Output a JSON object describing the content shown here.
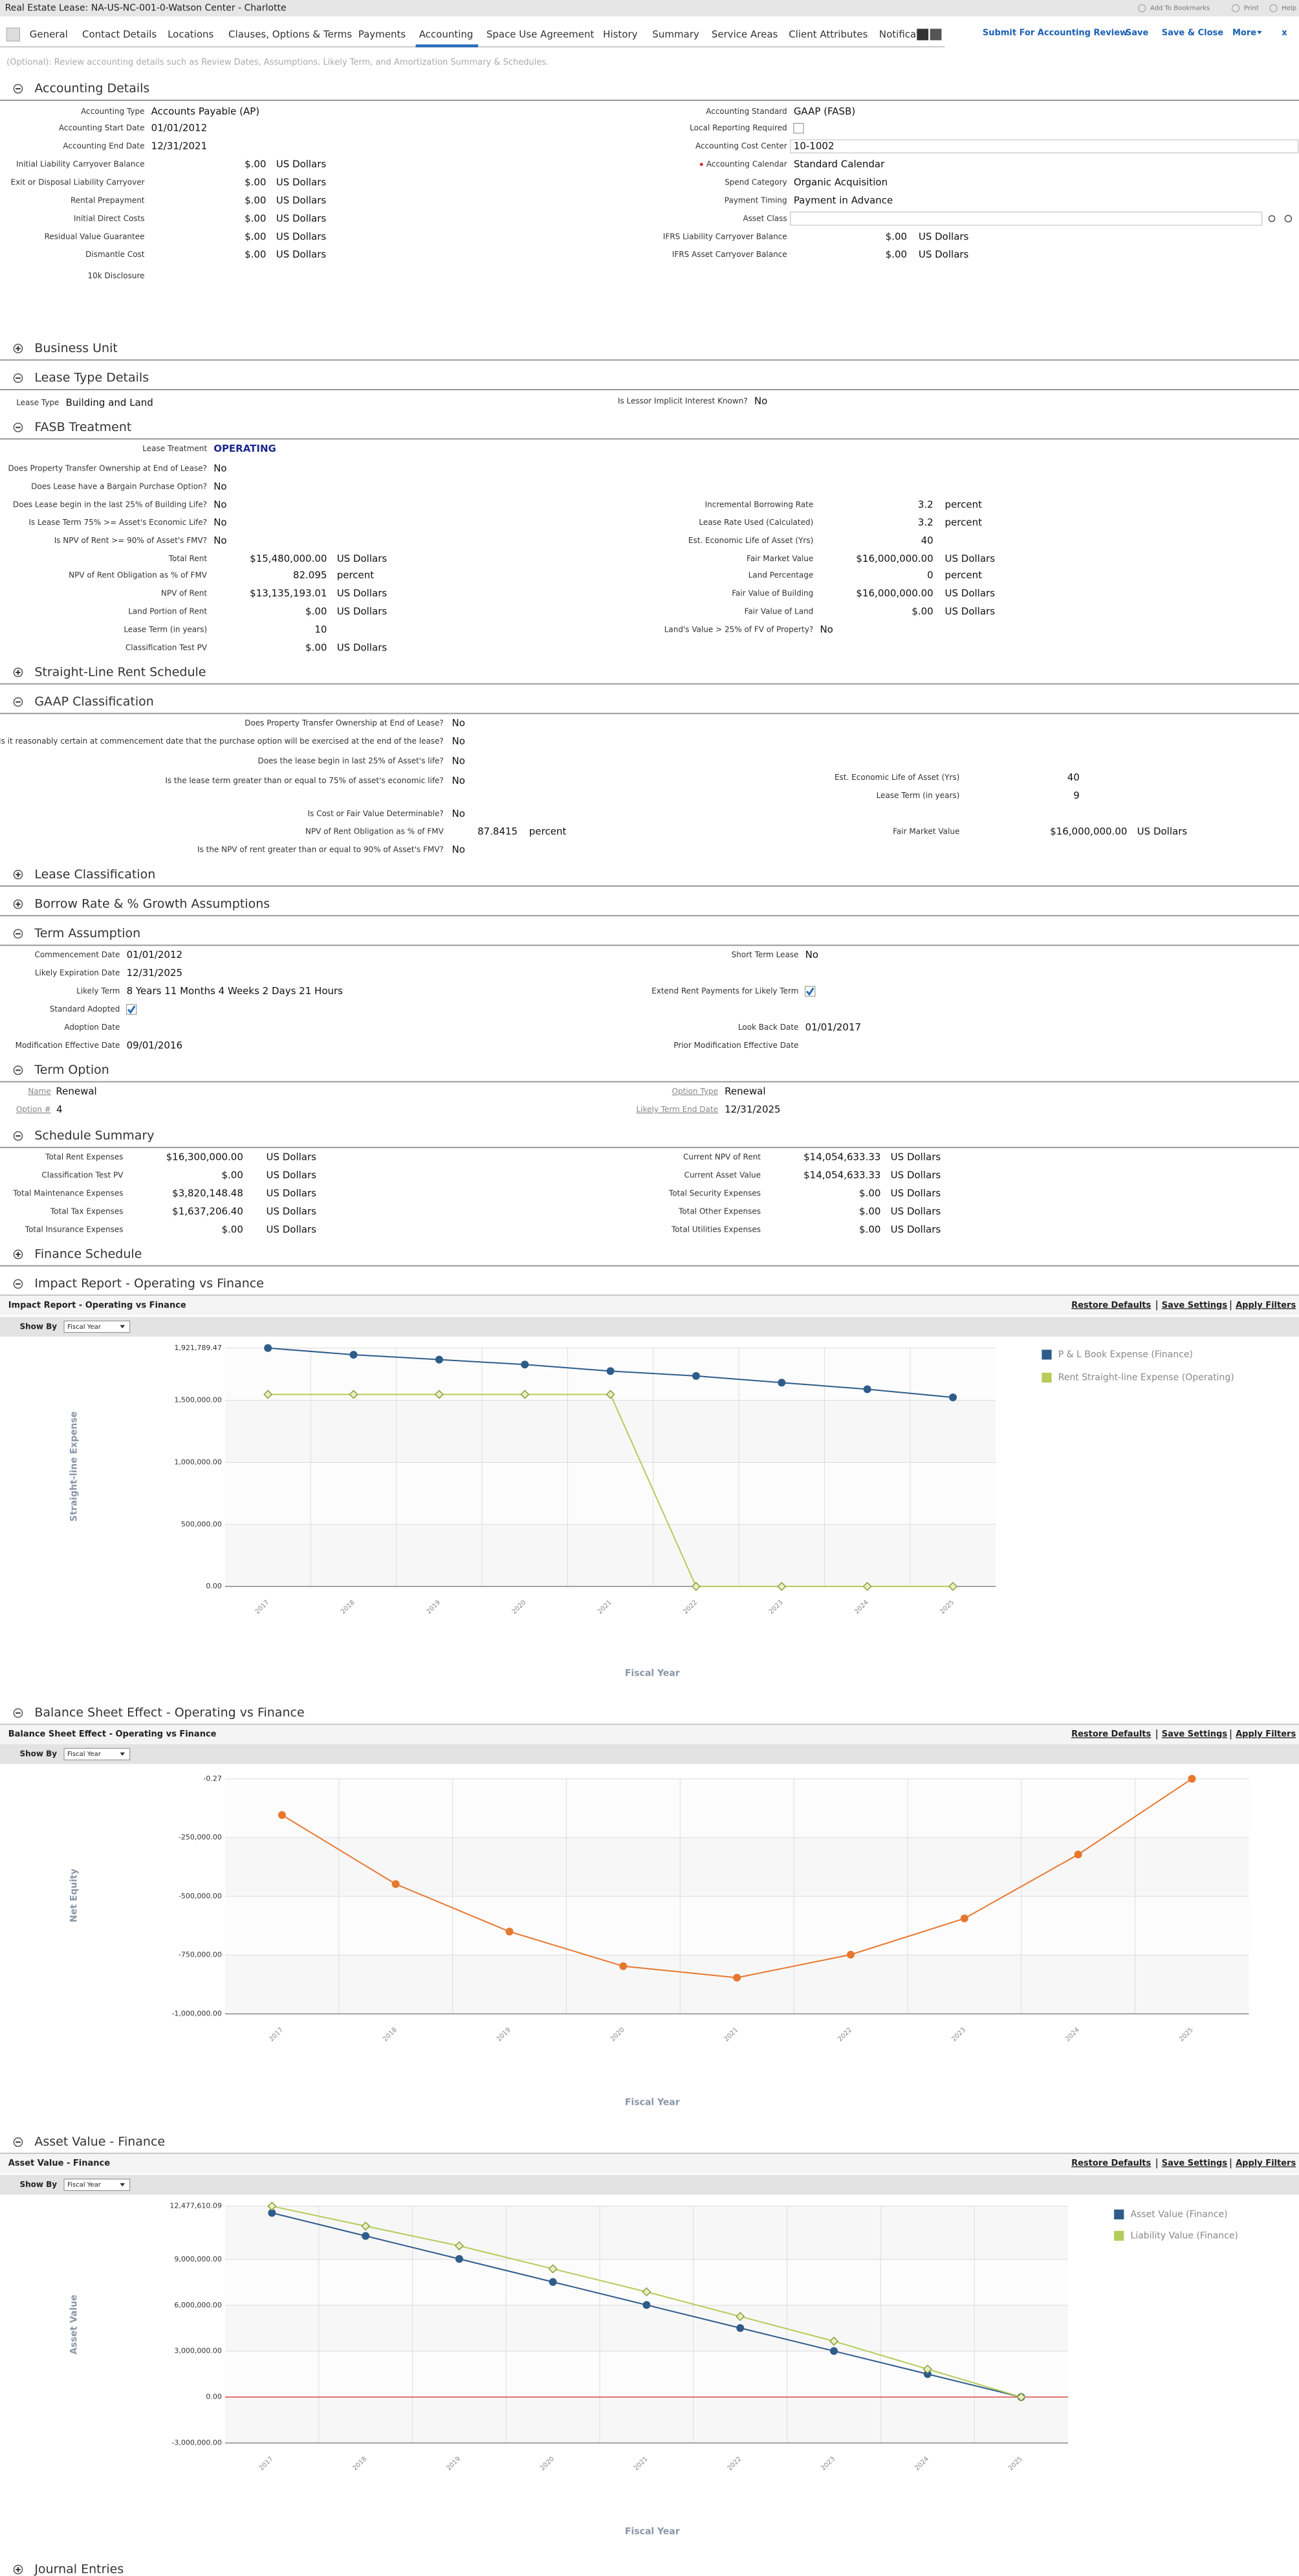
{
  "header": {
    "title": "Real Estate Lease: NA-US-NC-001-0-Watson Center - Charlotte",
    "links": [
      "Add To Bookmarks",
      "Print",
      "Help"
    ]
  },
  "tabs": [
    "General",
    "Contact Details",
    "Locations",
    "Clauses, Options & Terms",
    "Payments",
    "Accounting",
    "Space Use Agreement",
    "History",
    "Summary",
    "Service Areas",
    "Client Attributes",
    "Notificati"
  ],
  "active_tab": 5,
  "actions": [
    "Submit For Accounting Review",
    "Save",
    "Save & Close",
    "More",
    "x"
  ],
  "instructions": "(Optional): Review accounting details such as Review Dates, Assumptions, Likely Term, and Amortization Summary & Schedules.",
  "sections": [
    {
      "title": "Accounting Details",
      "expanded": true,
      "left": [
        {
          "label": "Accounting Type",
          "value": "Accounts Payable (AP)"
        },
        {
          "label": "Accounting Start Date",
          "value": "01/01/2012"
        },
        {
          "label": "Accounting End Date",
          "value": "12/31/2021"
        },
        {
          "label": "Initial Liability Carryover Balance",
          "value": "$.00",
          "unit": "US Dollars"
        },
        {
          "label": "Exit or Disposal Liability Carryover",
          "value": "$.00",
          "unit": "US Dollars"
        },
        {
          "label": "Rental Prepayment",
          "value": "$.00",
          "unit": "US Dollars"
        },
        {
          "label": "Initial Direct Costs",
          "value": "$.00",
          "unit": "US Dollars"
        },
        {
          "label": "Residual Value Guarantee",
          "value": "$.00",
          "unit": "US Dollars"
        },
        {
          "label": "Dismantle Cost",
          "value": "$.00",
          "unit": "US Dollars"
        },
        {
          "label": "10k Disclosure"
        }
      ],
      "right": [
        {
          "label": "Accounting Standard",
          "value": "GAAP (FASB)"
        },
        {
          "label": "Local Reporting Required",
          "value": false
        },
        {
          "label": "Accounting Cost Center",
          "value": "10-1002",
          "input": true
        },
        {
          "label": "Accounting Calendar",
          "value": "Standard Calendar",
          "required": true
        },
        {
          "label": "Spend Category",
          "value": "Organic Acquisition"
        },
        {
          "label": "Payment Timing",
          "value": "Payment in Advance"
        },
        {
          "label": "Asset Class",
          "input": true
        },
        {
          "label": "IFRS Liability Carryover Balance",
          "value": "$.00",
          "unit": "US Dollars"
        },
        {
          "label": "IFRS Asset Carryover Balance",
          "value": "$.00",
          "unit": "US Dollars"
        }
      ]
    },
    {
      "title": "Business Unit",
      "expanded": false
    },
    {
      "title": "Lease Type Details",
      "expanded": true,
      "left": [
        {
          "label": "Lease Type",
          "value": "Building and Land"
        }
      ],
      "right": [
        {
          "label": "Is Lessor Implicit Interest Known?",
          "value": "No"
        }
      ]
    },
    {
      "title": "FASB Treatment",
      "expanded": true,
      "left": [
        {
          "label": "Lease Treatment",
          "value": "OPERATING",
          "emphasis": true
        },
        {
          "label": "Does Property Transfer Ownership at End of Lease?",
          "value": "No"
        },
        {
          "label": "Does Lease have a Bargain Purchase Option?",
          "value": "No"
        },
        {
          "label": "Does Lease begin in the last 25% of Building Life?",
          "value": "No"
        },
        {
          "label": "Is Lease Term 75% >= Asset's Economic Life?",
          "value": "No"
        },
        {
          "label": "Is NPV of Rent >= 90% of Asset's FMV?",
          "value": "No"
        },
        {
          "label": "Total Rent",
          "value": "$15,480,000.00",
          "unit": "US Dollars"
        },
        {
          "label": "NPV of Rent Obligation as % of FMV",
          "value": 82.095,
          "unit": "percent"
        },
        {
          "label": "NPV of Rent",
          "value": "$13,135,193.01",
          "unit": "US Dollars"
        },
        {
          "label": "Land Portion of Rent",
          "value": "$.00",
          "unit": "US Dollars"
        },
        {
          "label": "Lease Term (in years)",
          "value": 10
        },
        {
          "label": "Classification Test PV",
          "value": "$.00",
          "unit": "US Dollars"
        }
      ],
      "right": [
        {
          "label": "Incremental Borrowing Rate",
          "value": 3.2,
          "unit": "percent"
        },
        {
          "label": "Lease Rate Used (Calculated)",
          "value": 3.2,
          "unit": "percent"
        },
        {
          "label": "Est. Economic Life of Asset (Yrs)",
          "value": 40
        },
        {
          "label": "Fair Market Value",
          "value": "$16,000,000.00",
          "unit": "US Dollars"
        },
        {
          "label": "Land Percentage",
          "value": 0,
          "unit": "percent"
        },
        {
          "label": "Fair Value of Building",
          "value": "$16,000,000.00",
          "unit": "US Dollars"
        },
        {
          "label": "Fair Value of Land",
          "value": "$.00",
          "unit": "US Dollars"
        },
        {
          "label": "Land's Value > 25% of FV of Property?",
          "value": "No"
        }
      ]
    },
    {
      "title": "Straight-Line Rent Schedule",
      "expanded": false
    },
    {
      "title": "GAAP Classification",
      "expanded": true,
      "left": [
        {
          "label": "Does Property Transfer Ownership at End of Lease?",
          "value": "No"
        },
        {
          "label": "Is it reasonably certain at commencement date that the purchase option will be exercised at the end of the lease?",
          "value": "No"
        },
        {
          "label": "Does the lease begin in last 25% of Asset's life?",
          "value": "No"
        },
        {
          "label": "Is the lease term greater than or equal to 75% of asset's economic life?",
          "value": "No"
        },
        {
          "label": "Is Cost or Fair Value Determinable?",
          "value": "No"
        },
        {
          "label": "NPV of Rent Obligation as % of FMV",
          "value": 87.8415,
          "unit": "percent"
        },
        {
          "label": "Is the NPV of rent greater than or equal to 90% of Asset's FMV?",
          "value": "No"
        }
      ],
      "right": [
        {
          "label": "Est. Economic Life of Asset (Yrs)",
          "value": 40
        },
        {
          "label": "Lease Term (in years)",
          "value": 9
        },
        {
          "label": "Fair Market Value",
          "value": "$16,000,000.00",
          "unit": "US Dollars"
        }
      ]
    },
    {
      "title": "Lease Classification",
      "expanded": false
    },
    {
      "title": "Borrow Rate & % Growth Assumptions",
      "expanded": false
    },
    {
      "title": "Term Assumption",
      "expanded": true,
      "left": [
        {
          "label": "Commencement Date",
          "value": "01/01/2012"
        },
        {
          "label": "Likely Expiration Date",
          "value": "12/31/2025"
        },
        {
          "label": "Likely Term",
          "value": "8 Years 11 Months 4 Weeks 2 Days 21 Hours"
        },
        {
          "label": "Standard Adopted",
          "value": true
        },
        {
          "label": "Adoption Date"
        },
        {
          "label": "Modification Effective Date",
          "value": "09/01/2016"
        }
      ],
      "right": [
        {
          "label": "Short Term Lease",
          "value": "No"
        },
        {
          "label": "Extend Rent Payments for Likely Term",
          "value": true
        },
        {
          "label": "Look Back Date",
          "value": "01/01/2017"
        },
        {
          "label": "Prior Modification Effective Date"
        }
      ]
    },
    {
      "title": "Term Option",
      "expanded": true,
      "left": [
        {
          "label": "Name",
          "value": "Renewal"
        },
        {
          "label": "Option #",
          "value": 4
        }
      ],
      "right": [
        {
          "label": "Option Type",
          "value": "Renewal"
        },
        {
          "label": "Likely Term End Date",
          "value": "12/31/2025"
        }
      ]
    },
    {
      "title": "Schedule Summary",
      "expanded": true,
      "left": [
        {
          "label": "Total Rent Expenses",
          "value": "$16,300,000.00",
          "unit": "US Dollars"
        },
        {
          "label": "Classification Test PV",
          "value": "$.00",
          "unit": "US Dollars"
        },
        {
          "label": "Total Maintenance Expenses",
          "value": "$3,820,148.48",
          "unit": "US Dollars"
        },
        {
          "label": "Total Tax Expenses",
          "value": "$1,637,206.40",
          "unit": "US Dollars"
        },
        {
          "label": "Total Insurance Expenses",
          "value": "$.00",
          "unit": "US Dollars"
        }
      ],
      "right": [
        {
          "label": "Current NPV of Rent",
          "value": "$14,054,633.33",
          "unit": "US Dollars"
        },
        {
          "label": "Current Asset Value",
          "value": "$14,054,633.33",
          "unit": "US Dollars"
        },
        {
          "label": "Total Security Expenses",
          "value": "$.00",
          "unit": "US Dollars"
        },
        {
          "label": "Total Other Expenses",
          "value": "$.00",
          "unit": "US Dollars"
        },
        {
          "label": "Total Utilities Expenses",
          "value": "$.00",
          "unit": "US Dollars"
        }
      ]
    },
    {
      "title": "Finance Schedule",
      "expanded": false
    },
    {
      "title": "Impact Report - Operating vs Finance",
      "expanded": true
    },
    {
      "title": "Balance Sheet Effect - Operating vs Finance",
      "expanded": true
    },
    {
      "title": "Asset Value - Finance",
      "expanded": true
    },
    {
      "title": "Journal Entries",
      "expanded": false
    }
  ],
  "charts": [
    {
      "type": "line",
      "title": "Impact Report - Operating vs Finance",
      "links": [
        "Restore Defaults",
        "Save Settings",
        "Apply Filters"
      ],
      "show_by_label": "Show By",
      "show_by": "Fiscal Year",
      "x_label": "Fiscal Year",
      "y_label": "Straight-line Expense",
      "categories": [
        "2017",
        "2018",
        "2019",
        "2020",
        "2021",
        "2022",
        "2023",
        "2024",
        "2025"
      ],
      "ylim": [
        0,
        1921789.47
      ],
      "yticks": [
        {
          "value": 0,
          "label": "0.00"
        },
        {
          "value": 500000,
          "label": "500,000.00"
        },
        {
          "value": 1000000,
          "label": "1,000,000.00"
        },
        {
          "value": 1500000,
          "label": "1,500,000.00"
        },
        {
          "value": 1921789.47,
          "label": "1,921,789.47"
        }
      ],
      "legend": true,
      "grid": true,
      "series": [
        {
          "name": "P & L Book Expense (Finance)",
          "color": "#2e5c8a",
          "marker": "circle",
          "values": [
            1921789.47,
            1868000,
            1829000,
            1789000,
            1736000,
            1697000,
            1643000,
            1590000,
            1524000
          ]
        },
        {
          "name": "Rent Straight-line Expense (Operating)",
          "color": "#b5cc5a",
          "marker": "diamond",
          "values": [
            1548000,
            1548000,
            1548000,
            1548000,
            1548000,
            0,
            0,
            0,
            0
          ]
        }
      ]
    },
    {
      "type": "line",
      "title": "Balance Sheet Effect - Operating vs Finance",
      "links": [
        "Restore Defaults",
        "Save Settings",
        "Apply Filters"
      ],
      "show_by_label": "Show By",
      "show_by": "Fiscal Year",
      "x_label": "Fiscal Year",
      "y_label": "Net Equity",
      "categories": [
        "2017",
        "2018",
        "2019",
        "2020",
        "2021",
        "2022",
        "2023",
        "2024",
        "2025"
      ],
      "ylim": [
        -1000000,
        -0.27
      ],
      "yticks": [
        {
          "value": -1000000,
          "label": "-1,000,000.00"
        },
        {
          "value": -750000,
          "label": "-750,000.00"
        },
        {
          "value": -500000,
          "label": "-500,000.00"
        },
        {
          "value": -250000,
          "label": "-250,000.00"
        },
        -0.27
      ],
      "legend": false,
      "grid": true,
      "color": "#e8772e",
      "marker": "circle",
      "values": [
        -154000,
        -448000,
        -650000,
        -797000,
        -846000,
        -748000,
        -594000,
        -322000,
        -0.27
      ]
    },
    {
      "type": "line",
      "title": "Asset Value - Finance",
      "links": [
        "Restore Defaults",
        "Save Settings",
        "Apply Filters"
      ],
      "show_by_label": "Show By",
      "show_by": "Fiscal Year",
      "x_label": "Fiscal Year",
      "y_label": "Asset Value",
      "categories": [
        "2017",
        "2018",
        "2019",
        "2020",
        "2021",
        "2022",
        "2023",
        "2024",
        "2025"
      ],
      "ylim": [
        -3000000,
        12477610.09
      ],
      "yticks": [
        {
          "value": -3000000,
          "label": "-3,000,000.00"
        },
        {
          "value": 0,
          "label": "0.00"
        },
        {
          "value": 3000000,
          "label": "3,000,000.00"
        },
        {
          "value": 6000000,
          "label": "6,000,000.00"
        },
        {
          "value": 9000000,
          "label": "9,000,000.00"
        },
        {
          "value": 12477610.09,
          "label": "12,477,610.09"
        }
      ],
      "legend": true,
      "grid": true,
      "zero_line": "#e04040",
      "series": [
        {
          "name": "Asset Value (Finance)",
          "color": "#2e5c8a",
          "marker": "circle",
          "values": [
            12040000,
            10535000,
            9030000,
            7525000,
            6020000,
            4515000,
            3010000,
            1505000,
            0
          ]
        },
        {
          "name": "Liability Value (Finance)",
          "color": "#b5cc5a",
          "marker": "diamond",
          "values": [
            12477610.09,
            11178000,
            9888000,
            8384000,
            6879000,
            5267000,
            3654000,
            1827000,
            0
          ]
        }
      ]
    }
  ]
}
